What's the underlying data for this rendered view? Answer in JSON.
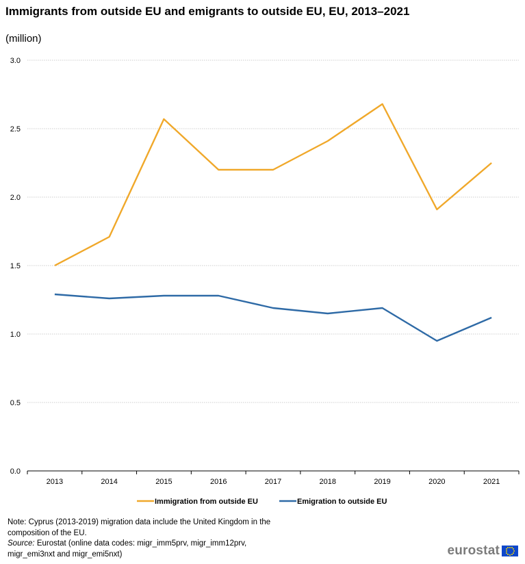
{
  "title": "Immigrants from outside EU and emigrants to outside EU,  EU, 2013–2021",
  "subtitle": "(million)",
  "notes": {
    "note": "Note: Cyprus (2013-2019) migration data include the United Kingdom in the composition of the EU.",
    "source_label": "Source:",
    "source_text": " Eurostat (online data codes: migr_imm5prv, migr_imm12prv, migr_emi3nxt and migr_emi5nxt)"
  },
  "logo": {
    "text": "eurostat"
  },
  "chart_data": {
    "type": "line",
    "categories": [
      "2013",
      "2014",
      "2015",
      "2016",
      "2017",
      "2018",
      "2019",
      "2020",
      "2021"
    ],
    "ylim": [
      0,
      3
    ],
    "yticks": [
      0,
      0.5,
      1,
      1.5,
      2,
      2.5,
      3
    ],
    "ytick_labels": [
      "0.0",
      "0.5",
      "1.0",
      "1.5",
      "2.0",
      "2.5",
      "3.0"
    ],
    "grid": true,
    "legend_position": "bottom",
    "series": [
      {
        "name": "Immigration from outside EU",
        "color": "#f0a82a",
        "values": [
          1.5,
          1.71,
          2.57,
          2.2,
          2.2,
          2.41,
          2.68,
          1.91,
          2.25
        ]
      },
      {
        "name": "Emigration to outside EU",
        "color": "#2e6aa6",
        "values": [
          1.29,
          1.26,
          1.28,
          1.28,
          1.19,
          1.15,
          1.19,
          0.95,
          1.12
        ]
      }
    ]
  }
}
